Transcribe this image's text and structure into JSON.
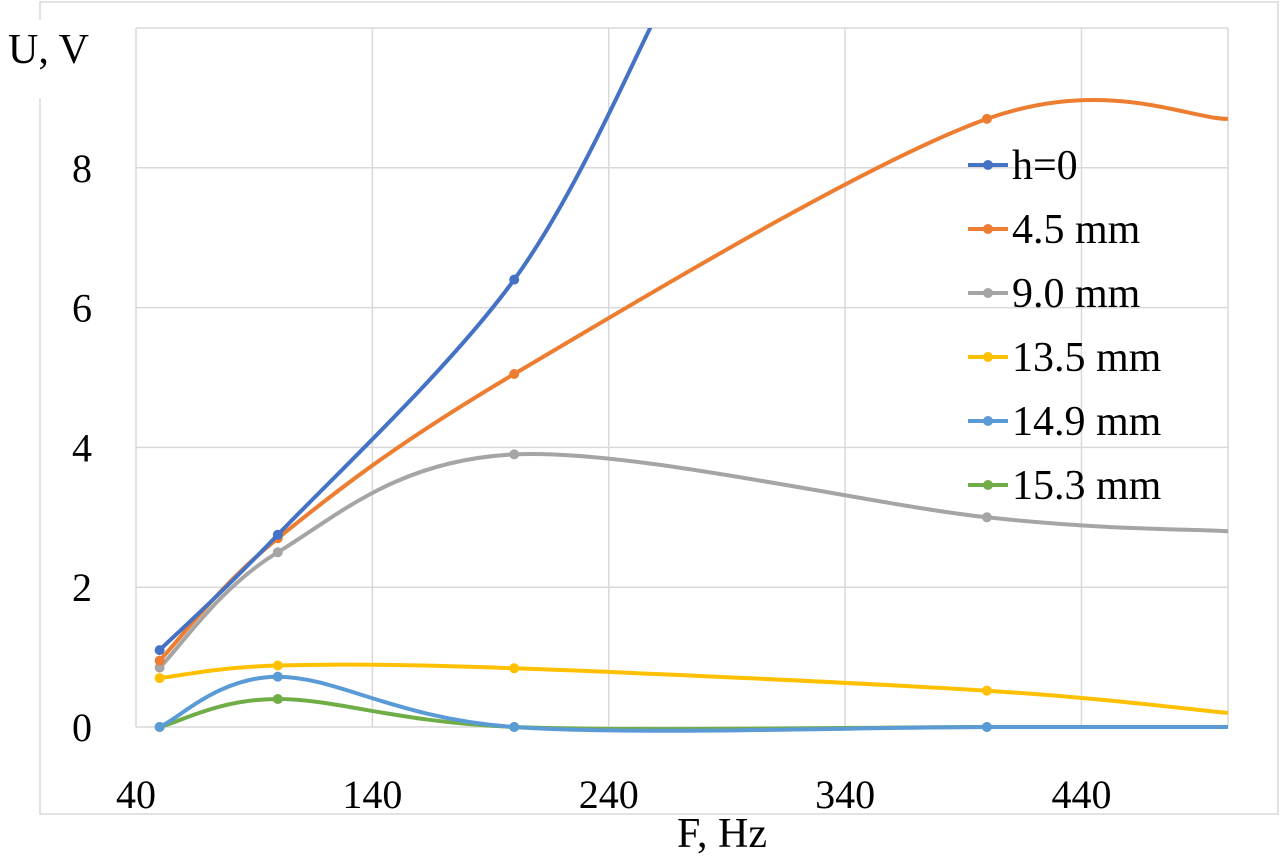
{
  "chart_data": {
    "type": "line",
    "xlabel": "F, Hz",
    "ylabel": "U, V",
    "xlim": [
      40,
      502
    ],
    "ylim": [
      0,
      10
    ],
    "xticks": [
      "40",
      "140",
      "240",
      "340",
      "440"
    ],
    "yticks": [
      "0",
      "2",
      "4",
      "6",
      "8"
    ],
    "grid": true,
    "legend_position": "right",
    "series": [
      {
        "name": "h=0",
        "color": "#4472C4",
        "x": [
          50,
          100,
          200
        ],
        "y": [
          1.1,
          2.75,
          6.4
        ]
      },
      {
        "name": "4.5 mm",
        "color": "#ED7D31",
        "x": [
          50,
          100,
          200,
          400,
          502
        ],
        "y": [
          0.95,
          2.7,
          5.05,
          8.7,
          8.7
        ]
      },
      {
        "name": "9.0 mm",
        "color": "#A5A5A5",
        "x": [
          50,
          100,
          200,
          400,
          502
        ],
        "y": [
          0.85,
          2.5,
          3.9,
          3.0,
          2.8
        ]
      },
      {
        "name": "13.5 mm",
        "color": "#FFC000",
        "x": [
          50,
          100,
          200,
          400,
          502
        ],
        "y": [
          0.7,
          0.88,
          0.84,
          0.52,
          0.2
        ]
      },
      {
        "name": "14.9 mm",
        "color": "#5B9BD5",
        "x": [
          50,
          100,
          200,
          400,
          502
        ],
        "y": [
          0.0,
          0.72,
          0.0,
          0.0,
          0.0
        ]
      },
      {
        "name": "15.3 mm",
        "color": "#70AD47",
        "x": [
          50,
          100,
          200,
          400,
          502
        ],
        "y": [
          0.0,
          0.4,
          0.0,
          0.0,
          0.0
        ]
      }
    ]
  }
}
